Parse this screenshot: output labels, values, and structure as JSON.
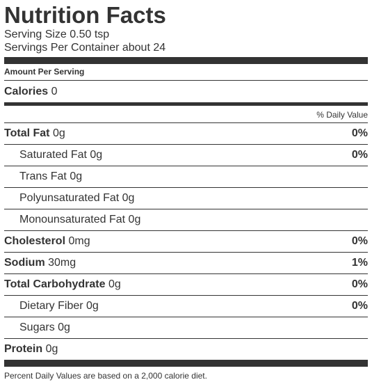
{
  "label": {
    "title": "Nutrition Facts",
    "serving_size": "Serving Size 0.50 tsp",
    "servings_per_container": "Servings Per Container about 24",
    "amount_per_serving": "Amount Per Serving",
    "calories": {
      "name": "Calories",
      "value": "0"
    },
    "daily_value_header": "% Daily Value",
    "nutrients": [
      {
        "name": "Total Fat",
        "amount": "0g",
        "pct": "0%"
      },
      {
        "name": "Saturated Fat",
        "amount": "0g",
        "pct": "0%"
      },
      {
        "name": "Trans Fat",
        "amount": "0g",
        "pct": ""
      },
      {
        "name": "Polyunsaturated Fat",
        "amount": "0g",
        "pct": ""
      },
      {
        "name": "Monounsaturated Fat",
        "amount": "0g",
        "pct": ""
      },
      {
        "name": "Cholesterol",
        "amount": "0mg",
        "pct": "0%"
      },
      {
        "name": "Sodium",
        "amount": "30mg",
        "pct": "1%"
      },
      {
        "name": "Total Carbohydrate",
        "amount": "0g",
        "pct": "0%"
      },
      {
        "name": "Dietary Fiber",
        "amount": "0g",
        "pct": "0%"
      },
      {
        "name": "Sugars",
        "amount": "0g",
        "pct": ""
      },
      {
        "name": "Protein",
        "amount": "0g",
        "pct": ""
      }
    ],
    "footnote": "Percent Daily Values are based on a 2,000 calorie diet.",
    "colors": {
      "text": "#333333",
      "bars": "#333333"
    }
  }
}
